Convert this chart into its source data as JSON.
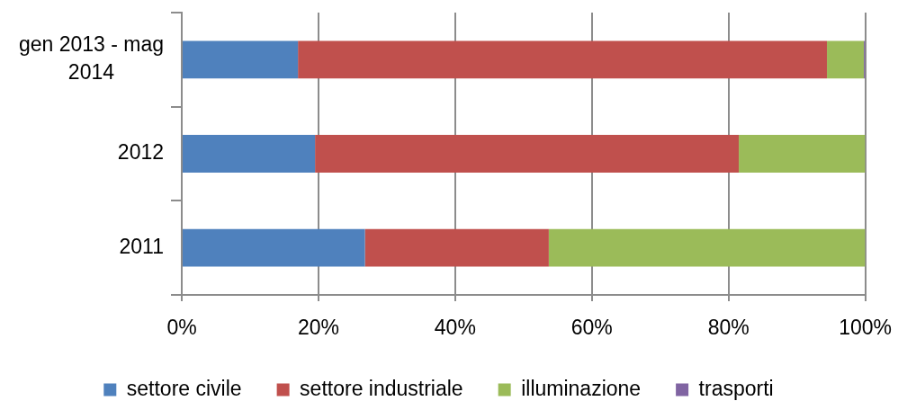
{
  "chart_data": {
    "type": "bar",
    "orientation": "horizontal",
    "stacked": true,
    "categories": [
      "gen 2013 - mag 2014",
      "2012",
      "2011"
    ],
    "series": [
      {
        "name": "settore civile",
        "color": "#4f81bd",
        "values": [
          17.0,
          19.5,
          26.8
        ]
      },
      {
        "name": "settore industriale",
        "color": "#c0504d",
        "values": [
          77.4,
          62.0,
          26.9
        ]
      },
      {
        "name": "illuminazione",
        "color": "#9bbb59",
        "values": [
          5.4,
          18.5,
          46.3
        ]
      },
      {
        "name": "trasporti",
        "color": "#8064a2",
        "values": [
          0.2,
          0,
          0
        ]
      }
    ],
    "xlim": [
      0,
      100
    ],
    "xticks": [
      {
        "value": 0,
        "label": "0%"
      },
      {
        "value": 20,
        "label": "20%"
      },
      {
        "value": 40,
        "label": "40%"
      },
      {
        "value": 60,
        "label": "60%"
      },
      {
        "value": 80,
        "label": "80%"
      },
      {
        "value": 100,
        "label": "100%"
      }
    ],
    "grid": "x",
    "legend": "bottom"
  }
}
